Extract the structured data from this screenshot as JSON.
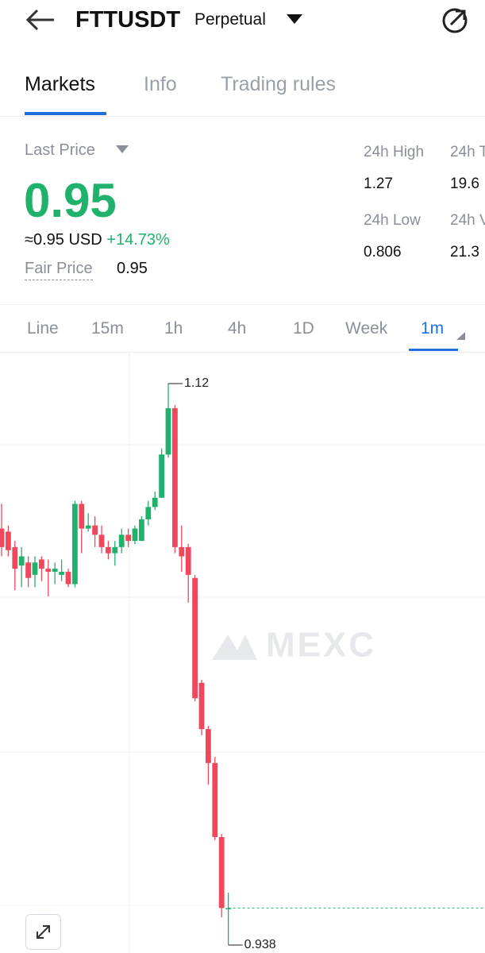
{
  "header": {
    "title": "FTTUSDT",
    "subtitle": "Perpetual"
  },
  "tabs": [
    "Markets",
    "Info",
    "Trading rules"
  ],
  "price": {
    "label": "Last Price",
    "value": "0.95",
    "approx": "≈0.95",
    "currency": "USD",
    "change": "+14.73%",
    "fair_label": "Fair Price",
    "fair_value": "0.95"
  },
  "stats": [
    {
      "label": "24h High",
      "value": "1.27"
    },
    {
      "label": "24h T",
      "value": "19.6"
    },
    {
      "label": "24h Low",
      "value": "0.806"
    },
    {
      "label": "24h V",
      "value": "21.3"
    }
  ],
  "intervals": [
    "Line",
    "15m",
    "1h",
    "4h",
    "1D",
    "Week",
    "1m"
  ],
  "chart": {
    "type": "candlestick",
    "watermark": "MEXC",
    "max_label": "1.12",
    "min_label": "0.938",
    "up_color": "#20b26c",
    "down_color": "#f0475c",
    "candles": [
      [
        1.073,
        1.081,
        1.064,
        1.067
      ],
      [
        1.072,
        1.074,
        1.064,
        1.066
      ],
      [
        1.067,
        1.069,
        1.053,
        1.06
      ],
      [
        1.061,
        1.067,
        1.054,
        1.064
      ],
      [
        1.062,
        1.064,
        1.054,
        1.057
      ],
      [
        1.058,
        1.064,
        1.054,
        1.062
      ],
      [
        1.063,
        1.064,
        1.056,
        1.06
      ],
      [
        1.06,
        1.063,
        1.051,
        1.059
      ],
      [
        1.059,
        1.062,
        1.055,
        1.06
      ],
      [
        1.058,
        1.063,
        1.056,
        1.059
      ],
      [
        1.059,
        1.06,
        1.054,
        1.055
      ],
      [
        1.055,
        1.082,
        1.054,
        1.081
      ],
      [
        1.081,
        1.082,
        1.065,
        1.073
      ],
      [
        1.073,
        1.078,
        1.072,
        1.074
      ],
      [
        1.074,
        1.077,
        1.067,
        1.071
      ],
      [
        1.071,
        1.074,
        1.065,
        1.067
      ],
      [
        1.067,
        1.069,
        1.063,
        1.065
      ],
      [
        1.065,
        1.069,
        1.061,
        1.067
      ],
      [
        1.067,
        1.073,
        1.065,
        1.071
      ],
      [
        1.071,
        1.073,
        1.067,
        1.069
      ],
      [
        1.069,
        1.074,
        1.068,
        1.073
      ],
      [
        1.069,
        1.077,
        1.069,
        1.076
      ],
      [
        1.076,
        1.082,
        1.074,
        1.08
      ],
      [
        1.08,
        1.085,
        1.079,
        1.083
      ],
      [
        1.083,
        1.099,
        1.083,
        1.097
      ],
      [
        1.097,
        1.12,
        1.096,
        1.112
      ],
      [
        1.112,
        1.113,
        1.065,
        1.067
      ],
      [
        1.067,
        1.074,
        1.059,
        1.064
      ],
      [
        1.067,
        1.068,
        1.049,
        1.058
      ],
      [
        1.057,
        1.058,
        1.017,
        1.018
      ],
      [
        1.023,
        1.024,
        1.006,
        1.008
      ],
      [
        1.008,
        1.009,
        0.99,
        0.997
      ],
      [
        0.997,
        0.999,
        0.972,
        0.973
      ],
      [
        0.973,
        0.974,
        0.947,
        0.95
      ],
      [
        0.95,
        0.955,
        0.938,
        0.95
      ]
    ]
  }
}
